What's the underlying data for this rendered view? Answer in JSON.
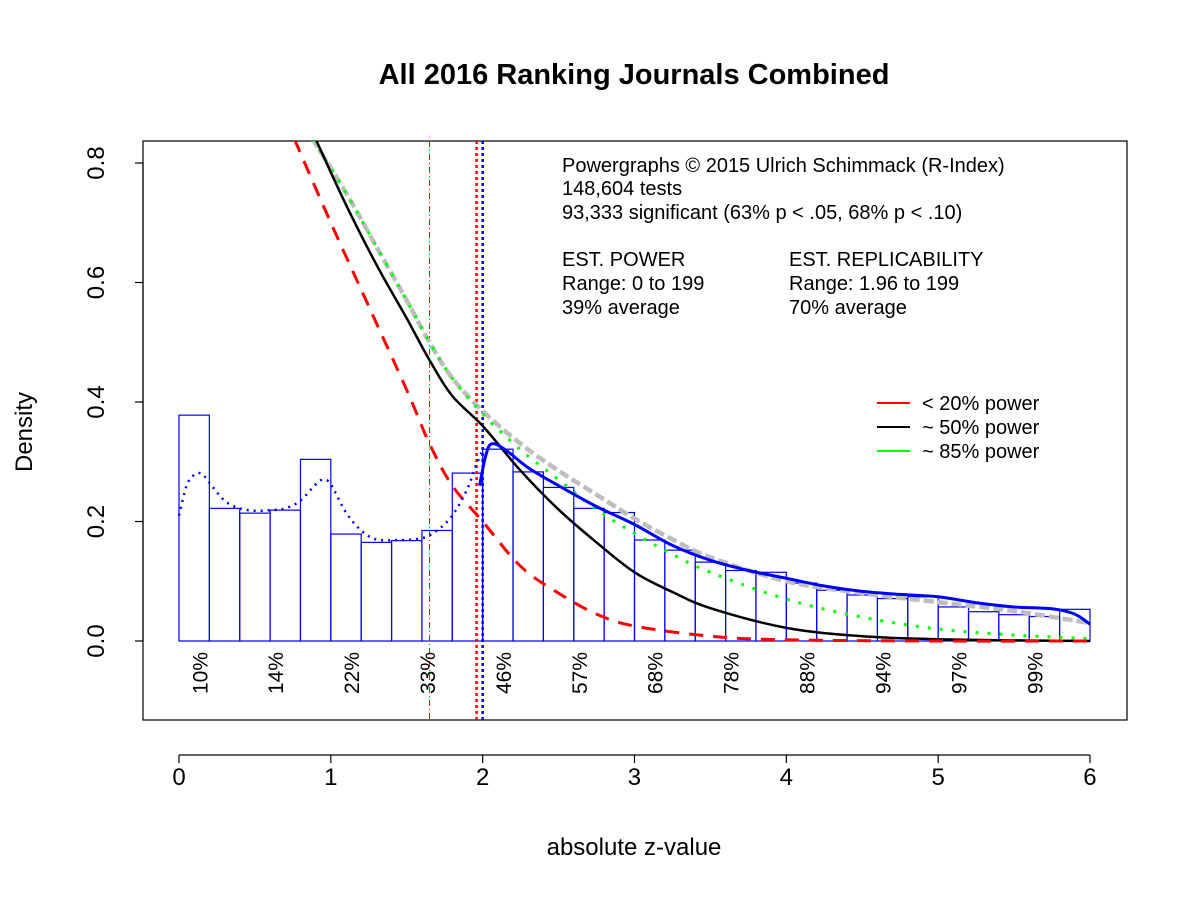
{
  "chart_data": {
    "type": "bar",
    "title": "All 2016 Ranking Journals Combined",
    "xlabel": "absolute z-value",
    "ylabel": "Density",
    "xlim": [
      0,
      6
    ],
    "ylim": [
      -0.13,
      0.84
    ],
    "x_ticks": [
      0,
      1,
      2,
      3,
      4,
      5,
      6
    ],
    "y_ticks": [
      "0.0",
      "0.2",
      "0.4",
      "0.6",
      "0.8"
    ],
    "y_tick_values": [
      0,
      0.2,
      0.4,
      0.6,
      0.8
    ],
    "grid": false,
    "colors": {
      "bars": "#0000ff",
      "red": "#ff0000",
      "black": "#000000",
      "green": "#00ff00",
      "gray": "#bebebe",
      "blue": "#0000ff"
    },
    "histogram": {
      "bin_width": 0.2,
      "bin_starts": [
        0,
        0.2,
        0.4,
        0.6,
        0.8,
        1.0,
        1.2,
        1.4,
        1.6,
        1.8,
        2.0,
        2.2,
        2.4,
        2.6,
        2.8,
        3.0,
        3.2,
        3.4,
        3.6,
        3.8,
        4.0,
        4.2,
        4.4,
        4.6,
        4.8,
        5.0,
        5.2,
        5.4,
        5.6,
        5.8
      ],
      "values": [
        0.378,
        0.222,
        0.214,
        0.219,
        0.304,
        0.179,
        0.165,
        0.168,
        0.185,
        0.281,
        0.321,
        0.283,
        0.257,
        0.222,
        0.215,
        0.169,
        0.152,
        0.132,
        0.118,
        0.115,
        0.097,
        0.085,
        0.077,
        0.071,
        0.074,
        0.057,
        0.049,
        0.044,
        0.041,
        0.053
      ]
    },
    "series": [
      {
        "style": "red-dashed",
        "x": [
          0.76,
          1.0,
          1.25,
          1.5,
          1.65,
          1.8,
          2.0,
          2.25,
          2.5,
          2.75,
          3.0,
          3.5,
          4.0,
          5.0,
          6.0
        ],
        "y": [
          0.84,
          0.7,
          0.56,
          0.42,
          0.33,
          0.26,
          0.2,
          0.125,
          0.08,
          0.045,
          0.025,
          0.008,
          0.002,
          0.0,
          0.0
        ]
      },
      {
        "style": "black-solid",
        "x": [
          0.9,
          1.1,
          1.3,
          1.5,
          1.65,
          1.8,
          2.0,
          2.25,
          2.5,
          2.75,
          3.0,
          3.25,
          3.5,
          4.0,
          4.5,
          5.0,
          5.5,
          6.0
        ],
        "y": [
          0.84,
          0.73,
          0.63,
          0.54,
          0.47,
          0.41,
          0.36,
          0.285,
          0.22,
          0.165,
          0.115,
          0.082,
          0.055,
          0.022,
          0.008,
          0.003,
          0.001,
          0.0
        ]
      },
      {
        "style": "green-dotted",
        "x": [
          0.88,
          1.1,
          1.3,
          1.5,
          1.65,
          1.8,
          2.0,
          2.25,
          2.5,
          2.75,
          3.0,
          3.25,
          3.5,
          4.0,
          4.5,
          5.0,
          5.5,
          6.0
        ],
        "y": [
          0.84,
          0.75,
          0.66,
          0.57,
          0.5,
          0.44,
          0.38,
          0.32,
          0.27,
          0.22,
          0.18,
          0.145,
          0.115,
          0.07,
          0.04,
          0.02,
          0.01,
          0.004
        ]
      },
      {
        "style": "gray-dashed",
        "x": [
          0.88,
          1.1,
          1.3,
          1.5,
          1.65,
          1.8,
          2.0,
          2.25,
          2.5,
          2.75,
          3.0,
          3.25,
          3.5,
          4.0,
          4.5,
          5.0,
          5.5,
          6.0
        ],
        "y": [
          0.84,
          0.75,
          0.66,
          0.57,
          0.5,
          0.44,
          0.385,
          0.33,
          0.285,
          0.245,
          0.205,
          0.17,
          0.14,
          0.1,
          0.08,
          0.065,
          0.05,
          0.03
        ]
      },
      {
        "style": "blue-solid",
        "x": [
          1.98,
          2.02,
          2.06,
          2.15,
          2.3,
          2.5,
          2.75,
          3.0,
          3.25,
          3.5,
          3.75,
          4.0,
          4.25,
          4.5,
          4.75,
          5.0,
          5.25,
          5.5,
          5.75,
          5.9,
          6.0
        ],
        "y": [
          0.26,
          0.31,
          0.33,
          0.32,
          0.29,
          0.26,
          0.225,
          0.195,
          0.16,
          0.135,
          0.118,
          0.105,
          0.092,
          0.083,
          0.078,
          0.074,
          0.064,
          0.057,
          0.054,
          0.045,
          0.028
        ]
      },
      {
        "style": "blue-dotted",
        "x": [
          0,
          0.05,
          0.1,
          0.15,
          0.2,
          0.3,
          0.4,
          0.5,
          0.6,
          0.7,
          0.8,
          0.9,
          0.95,
          1.0,
          1.1,
          1.2,
          1.3,
          1.45,
          1.6,
          1.7,
          1.8,
          1.9,
          1.95,
          2.0
        ],
        "y": [
          0.21,
          0.26,
          0.278,
          0.28,
          0.265,
          0.235,
          0.222,
          0.218,
          0.219,
          0.222,
          0.235,
          0.262,
          0.27,
          0.262,
          0.215,
          0.185,
          0.17,
          0.169,
          0.172,
          0.185,
          0.21,
          0.255,
          0.29,
          0.32
        ]
      }
    ],
    "vertical_lines": [
      {
        "x": 1.65,
        "color": "#ff0000",
        "style": "dash-dot"
      },
      {
        "x": 1.96,
        "color": "#ff0000",
        "style": "dotted"
      },
      {
        "x": 2.0,
        "color": "#0000ff",
        "style": "dotted"
      }
    ],
    "power_labels": [
      {
        "x": 0.14,
        "text": "10%"
      },
      {
        "x": 0.64,
        "text": "14%"
      },
      {
        "x": 1.14,
        "text": "22%"
      },
      {
        "x": 1.64,
        "text": "33%"
      },
      {
        "x": 2.14,
        "text": "46%"
      },
      {
        "x": 2.64,
        "text": "57%"
      },
      {
        "x": 3.14,
        "text": "68%"
      },
      {
        "x": 3.64,
        "text": "78%"
      },
      {
        "x": 4.14,
        "text": "88%"
      },
      {
        "x": 4.64,
        "text": "94%"
      },
      {
        "x": 5.14,
        "text": "97%"
      },
      {
        "x": 5.64,
        "text": "99%"
      }
    ],
    "legend": {
      "placement": "right",
      "entries": [
        {
          "label": "< 20% power",
          "color": "#ff0000"
        },
        {
          "label": "~ 50% power",
          "color": "#000000"
        },
        {
          "label": "~ 85% power",
          "color": "#00ff00"
        }
      ]
    },
    "annotations": {
      "credit": "Powergraphs © 2015 Ulrich Schimmack (R-Index)",
      "tests": "148,604 tests",
      "significant": "93,333 significant (63% p < .05, 68% p < .10)",
      "power_heading": "EST. POWER",
      "power_range": "Range: 0 to 199",
      "power_avg": "39% average",
      "repl_heading": "EST. REPLICABILITY",
      "repl_range": "Range: 1.96 to 199",
      "repl_avg": "70% average"
    }
  }
}
